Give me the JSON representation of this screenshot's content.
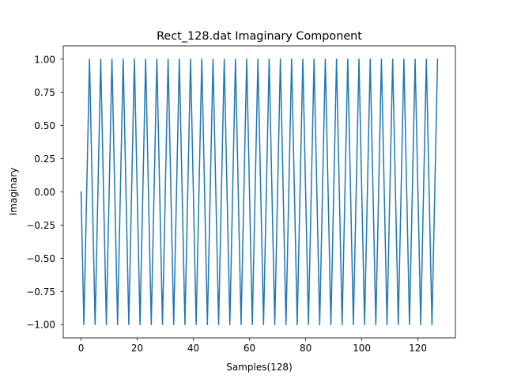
{
  "chart_data": {
    "type": "line",
    "title": "Rect_128.dat Imaginary Component",
    "xlabel": "Samples(128)",
    "ylabel": "Imaginary",
    "xlim": [
      -6.35,
      133.35
    ],
    "ylim": [
      -1.1,
      1.1
    ],
    "xticks": [
      0,
      20,
      40,
      60,
      80,
      100,
      120
    ],
    "xtick_labels": [
      "0",
      "20",
      "40",
      "60",
      "80",
      "100",
      "120"
    ],
    "yticks": [
      -1.0,
      -0.75,
      -0.5,
      -0.25,
      0.0,
      0.25,
      0.5,
      0.75,
      1.0
    ],
    "ytick_labels": [
      "−1.00",
      "−0.75",
      "−0.50",
      "−0.25",
      "0.00",
      "0.25",
      "0.50",
      "0.75",
      "1.00"
    ],
    "grid": false,
    "series": [
      {
        "color": "#1f77b4",
        "x": [
          0,
          1,
          2,
          3,
          4,
          5,
          6,
          7,
          8,
          9,
          10,
          11,
          12,
          13,
          14,
          15,
          16,
          17,
          18,
          19,
          20,
          21,
          22,
          23,
          24,
          25,
          26,
          27,
          28,
          29,
          30,
          31,
          32,
          33,
          34,
          35,
          36,
          37,
          38,
          39,
          40,
          41,
          42,
          43,
          44,
          45,
          46,
          47,
          48,
          49,
          50,
          51,
          52,
          53,
          54,
          55,
          56,
          57,
          58,
          59,
          60,
          61,
          62,
          63,
          64,
          65,
          66,
          67,
          68,
          69,
          70,
          71,
          72,
          73,
          74,
          75,
          76,
          77,
          78,
          79,
          80,
          81,
          82,
          83,
          84,
          85,
          86,
          87,
          88,
          89,
          90,
          91,
          92,
          93,
          94,
          95,
          96,
          97,
          98,
          99,
          100,
          101,
          102,
          103,
          104,
          105,
          106,
          107,
          108,
          109,
          110,
          111,
          112,
          113,
          114,
          115,
          116,
          117,
          118,
          119,
          120,
          121,
          122,
          123,
          124,
          125,
          126,
          127
        ],
        "values": [
          0,
          -1,
          0,
          1,
          0,
          -1,
          0,
          1,
          0,
          -1,
          0,
          1,
          0,
          -1,
          0,
          1,
          0,
          -1,
          0,
          1,
          0,
          -1,
          0,
          1,
          0,
          -1,
          0,
          1,
          0,
          -1,
          0,
          1,
          0,
          -1,
          0,
          1,
          0,
          -1,
          0,
          1,
          0,
          -1,
          0,
          1,
          0,
          -1,
          0,
          1,
          0,
          -1,
          0,
          1,
          0,
          -1,
          0,
          1,
          0,
          -1,
          0,
          1,
          0,
          -1,
          0,
          1,
          0,
          -1,
          0,
          1,
          0,
          -1,
          0,
          1,
          0,
          -1,
          0,
          1,
          0,
          -1,
          0,
          1,
          0,
          -1,
          0,
          1,
          0,
          -1,
          0,
          1,
          0,
          -1,
          0,
          1,
          0,
          -1,
          0,
          1,
          0,
          -1,
          0,
          1,
          0,
          -1,
          0,
          1,
          0,
          -1,
          0,
          1,
          0,
          -1,
          0,
          1,
          0,
          -1,
          0,
          1,
          0,
          -1,
          0,
          1,
          0,
          -1,
          0,
          1,
          0,
          -1,
          0,
          1
        ]
      }
    ]
  }
}
